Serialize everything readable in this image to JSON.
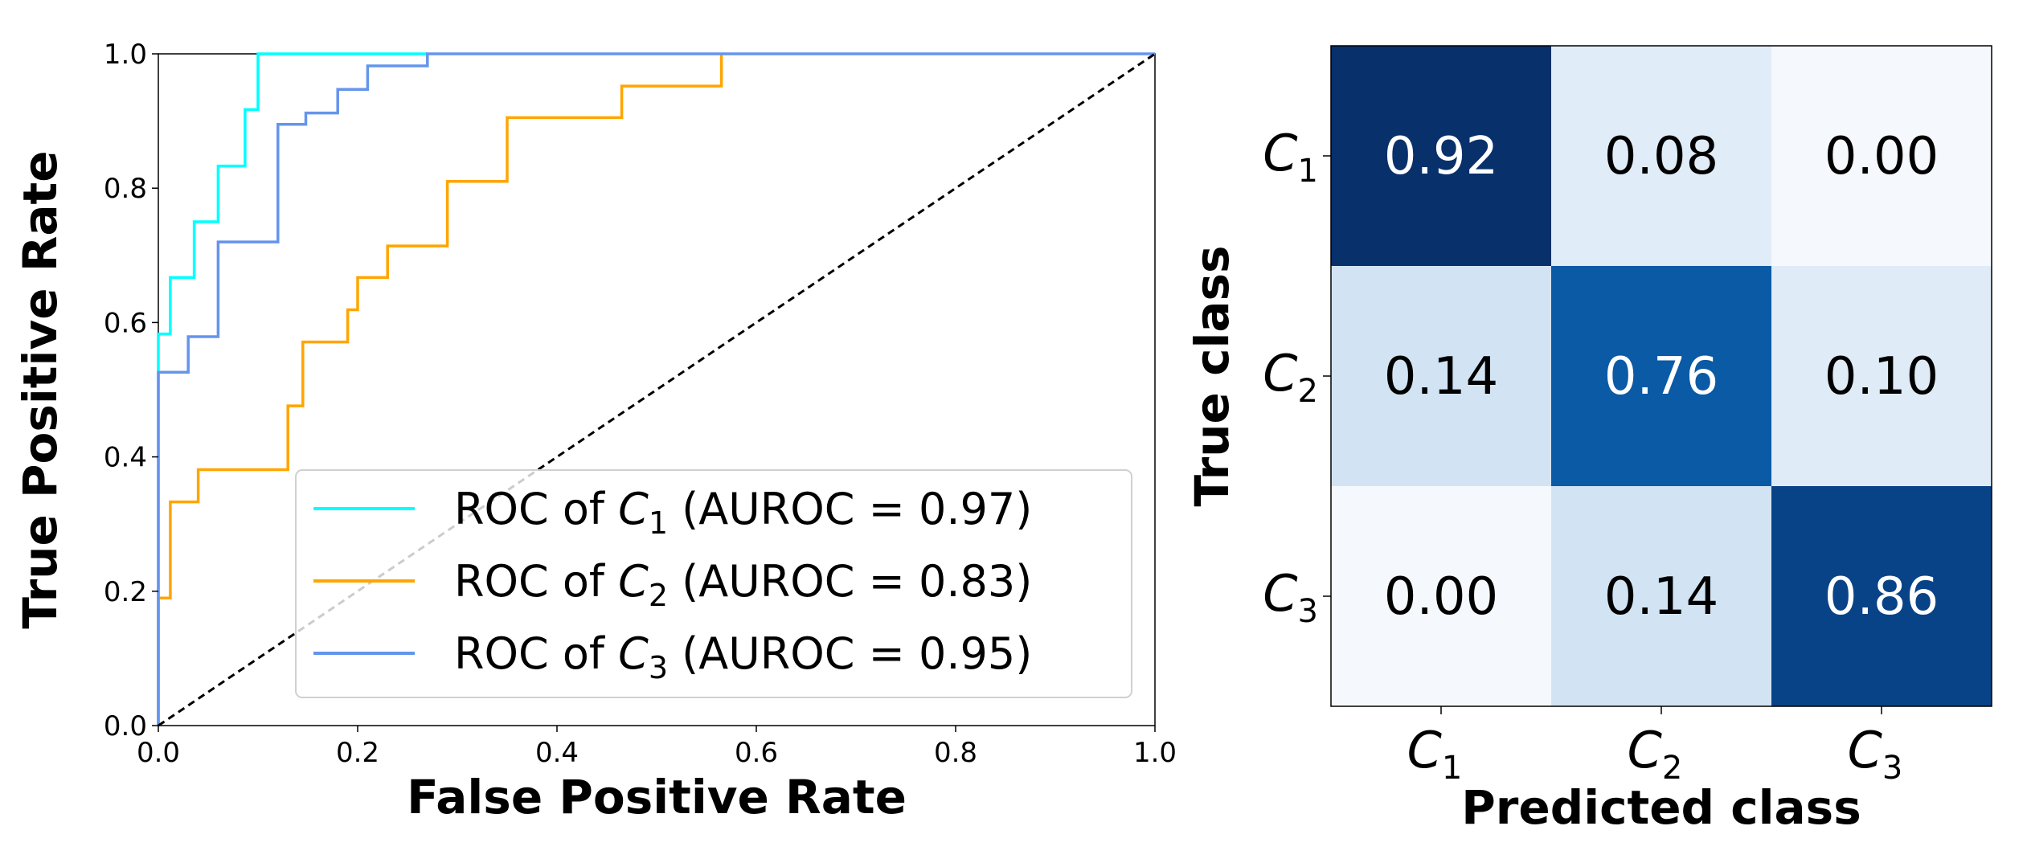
{
  "chart_data": [
    {
      "type": "line",
      "title": "",
      "xlabel": "False Positive Rate",
      "ylabel": "True Positive Rate",
      "xlim": [
        0.0,
        1.0
      ],
      "ylim": [
        0.0,
        1.0
      ],
      "xticks": [
        "0.0",
        "0.2",
        "0.4",
        "0.6",
        "0.8",
        "1.0"
      ],
      "yticks": [
        "0.0",
        "0.2",
        "0.4",
        "0.6",
        "0.8",
        "1.0"
      ],
      "grid": false,
      "legend_position": "bottom-right",
      "series": [
        {
          "name": "ROC of C1 (AUROC = 0.97)",
          "legend": {
            "prefix": "ROC of ",
            "var": "C",
            "sub": "1",
            "suffix": " (AUROC = 0.97)"
          },
          "color": "#00ffff",
          "step_x": [
            0,
            0,
            0.012,
            0.012,
            0.036,
            0.036,
            0.06,
            0.06,
            0.087,
            0.087,
            0.1,
            0.1,
            0.27
          ],
          "step_y": [
            0,
            0.583,
            0.583,
            0.667,
            0.667,
            0.75,
            0.75,
            0.833,
            0.833,
            0.917,
            0.917,
            1.0,
            1.0
          ]
        },
        {
          "name": "ROC of C2 (AUROC = 0.83)",
          "legend": {
            "prefix": "ROC of ",
            "var": "C",
            "sub": "2",
            "suffix": " (AUROC = 0.83)"
          },
          "color": "#ffa500",
          "step_x": [
            0,
            0,
            0.012,
            0.012,
            0.04,
            0.04,
            0.13,
            0.13,
            0.145,
            0.145,
            0.19,
            0.19,
            0.2,
            0.2,
            0.23,
            0.23,
            0.29,
            0.29,
            0.35,
            0.35,
            0.465,
            0.465,
            0.565,
            0.565
          ],
          "step_y": [
            0,
            0.19,
            0.19,
            0.333,
            0.333,
            0.381,
            0.381,
            0.476,
            0.476,
            0.571,
            0.571,
            0.619,
            0.619,
            0.667,
            0.667,
            0.714,
            0.714,
            0.81,
            0.81,
            0.905,
            0.905,
            0.952,
            0.952,
            1.0
          ]
        },
        {
          "name": "ROC of C3 (AUROC = 0.95)",
          "legend": {
            "prefix": "ROC of ",
            "var": "C",
            "sub": "3",
            "suffix": " (AUROC = 0.95)"
          },
          "color": "#6495ed",
          "step_x": [
            0,
            0,
            0.03,
            0.03,
            0.06,
            0.06,
            0.12,
            0.12,
            0.148,
            0.148,
            0.18,
            0.18,
            0.21,
            0.21,
            0.27,
            0.27,
            1.0
          ],
          "step_y": [
            0,
            0.526,
            0.526,
            0.579,
            0.579,
            0.72,
            0.72,
            0.895,
            0.895,
            0.912,
            0.912,
            0.947,
            0.947,
            0.982,
            0.982,
            1.0,
            1.0
          ]
        },
        {
          "name": "",
          "color": "#000000",
          "line_style": "dashed",
          "step_x": [
            0,
            1
          ],
          "step_y": [
            0,
            1
          ]
        }
      ]
    },
    {
      "type": "heatmap",
      "title": "",
      "xlabel": "Predicted class",
      "ylabel": "True class",
      "colormap": "Blues",
      "categories": [
        {
          "var": "C",
          "sub": "1"
        },
        {
          "var": "C",
          "sub": "2"
        },
        {
          "var": "C",
          "sub": "3"
        }
      ],
      "values": [
        [
          "0.92",
          "0.08",
          "0.00"
        ],
        [
          "0.14",
          "0.76",
          "0.10"
        ],
        [
          "0.00",
          "0.14",
          "0.86"
        ]
      ],
      "cell_colors": [
        [
          "#08306b",
          "#e0ecf7",
          "#f5f9fe"
        ],
        [
          "#d2e4f3",
          "#0a5aa5",
          "#dfebf7"
        ],
        [
          "#f5f9fe",
          "#d2e4f3",
          "#084387"
        ]
      ],
      "text_colors": [
        [
          "#ffffff",
          "#000000",
          "#000000"
        ],
        [
          "#000000",
          "#ffffff",
          "#000000"
        ],
        [
          "#000000",
          "#000000",
          "#ffffff"
        ]
      ]
    }
  ]
}
